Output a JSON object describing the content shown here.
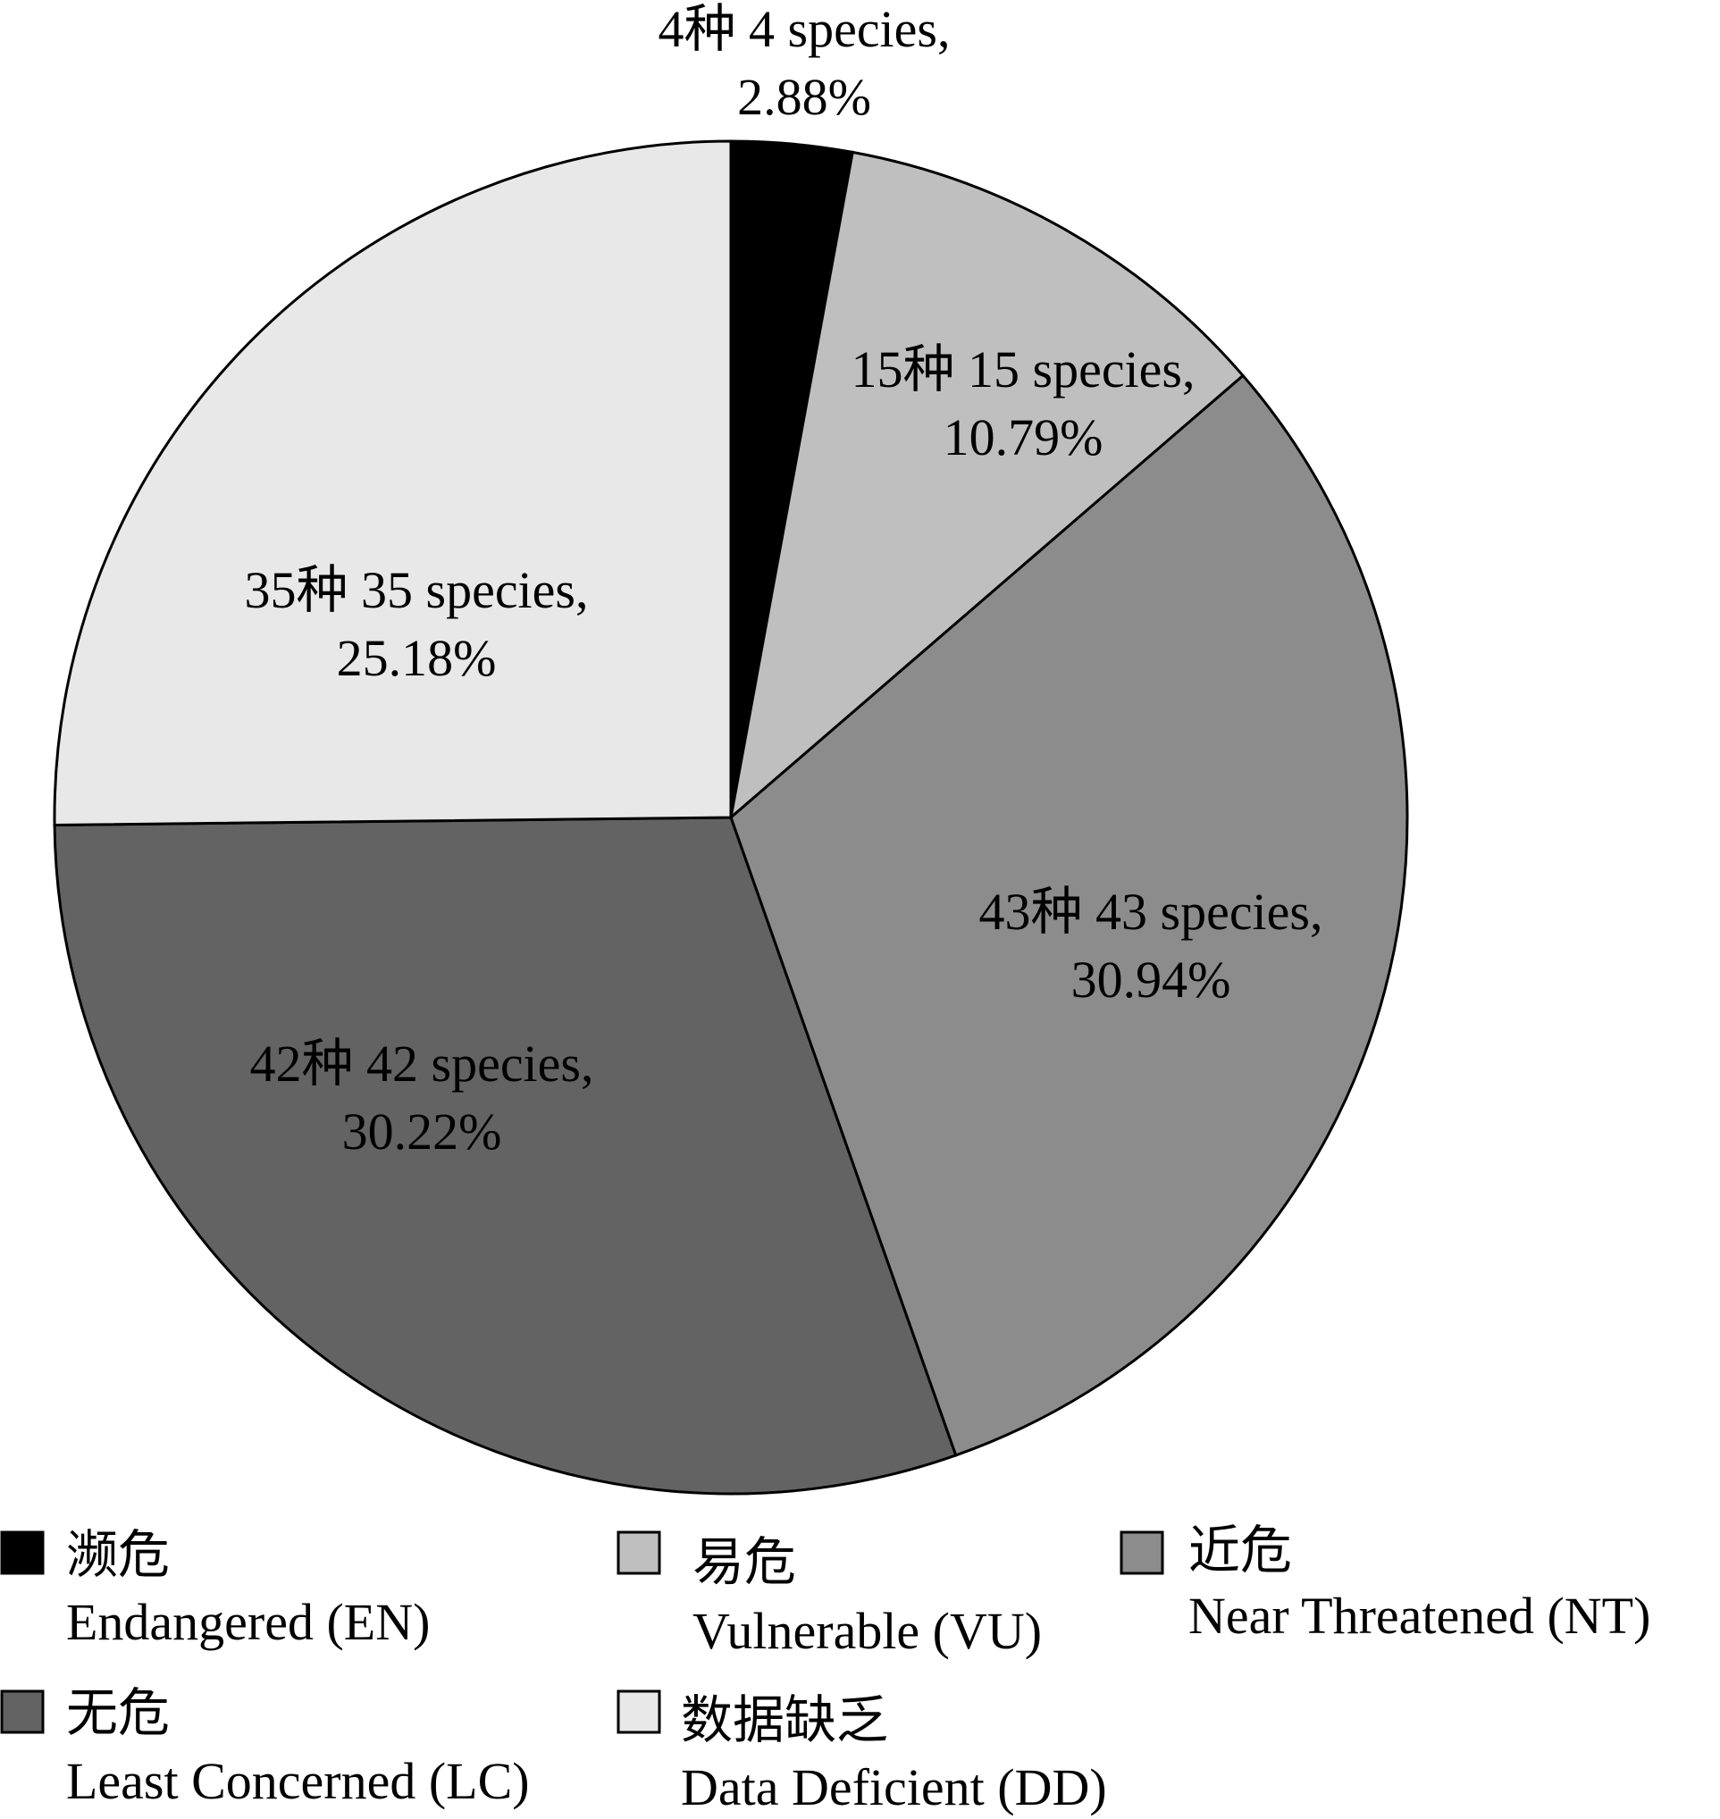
{
  "chart_data": {
    "type": "pie",
    "title": "",
    "start_angle_deg": 0,
    "direction": "clockwise",
    "slices": [
      {
        "name_cn": "濒危",
        "name_en": "Endangered (EN)",
        "species": 4,
        "percent": 2.88,
        "label_line1": "4种 4 species,",
        "label_line2": "2.88%",
        "color": "#000000"
      },
      {
        "name_cn": "易危",
        "name_en": "Vulnerable (VU)",
        "species": 15,
        "percent": 10.79,
        "label_line1": "15种 15 species,",
        "label_line2": "10.79%",
        "color": "#bfbfbf"
      },
      {
        "name_cn": "近危",
        "name_en": "Near Threatened (NT)",
        "species": 43,
        "percent": 30.94,
        "label_line1": "43种 43 species,",
        "label_line2": "30.94%",
        "color": "#8c8c8c"
      },
      {
        "name_cn": "无危",
        "name_en": "Least Concerned (LC)",
        "species": 42,
        "percent": 30.22,
        "label_line1": "42种 42 species,",
        "label_line2": "30.22%",
        "color": "#636363"
      },
      {
        "name_cn": "数据缺乏",
        "name_en": "Data Deficient (DD)",
        "species": 35,
        "percent": 25.18,
        "label_line1": "35种 35 species,",
        "label_line2": "25.18%",
        "color": "#e8e8e8"
      }
    ],
    "legend_position": "bottom"
  }
}
